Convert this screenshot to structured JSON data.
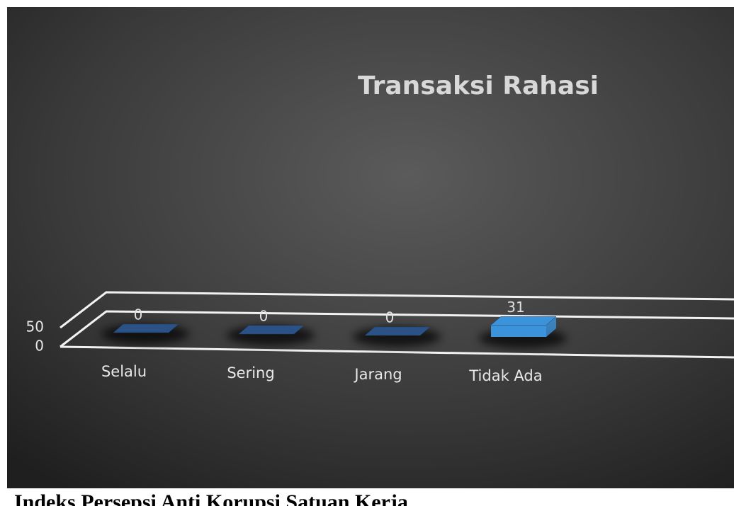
{
  "chart_data": {
    "type": "bar3d",
    "title": "Transaksi Rahasi",
    "categories": [
      "Selalu",
      "Sering",
      "Jarang",
      "Tidak Ada"
    ],
    "values": [
      0,
      0,
      0,
      31
    ],
    "colors": [
      "#2b5286",
      "#2b5286",
      "#2b5286",
      "#3b93dc"
    ],
    "ylim": [
      0,
      50
    ],
    "yticks": [
      0,
      50
    ],
    "grid": true
  },
  "caption": "Indeks Persepsi Anti Korupsi Satuan Kerja"
}
